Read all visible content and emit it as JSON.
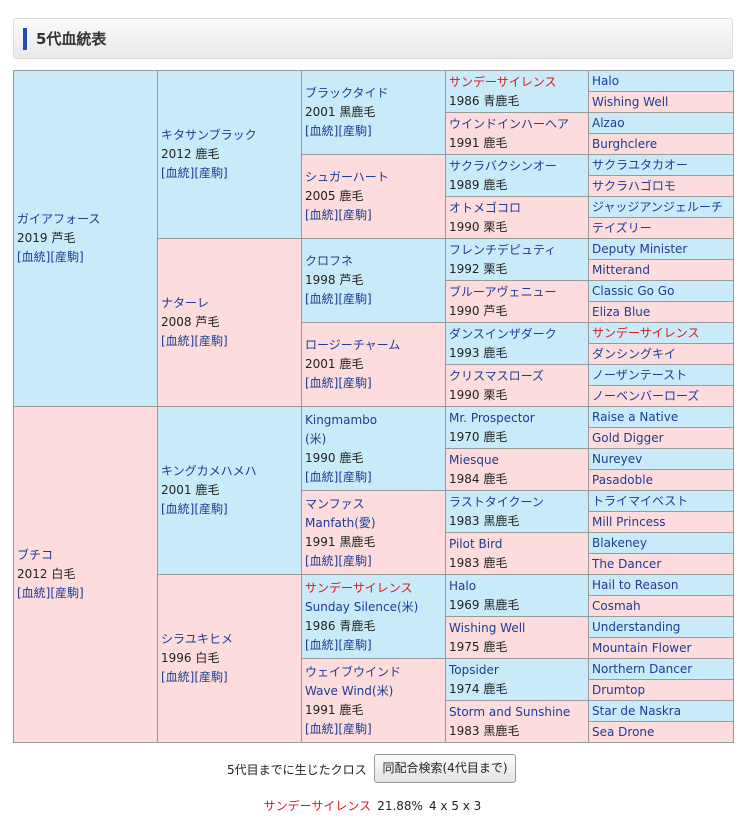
{
  "header": {
    "title": "5代血統表"
  },
  "link_labels": [
    "[血統]",
    "[産駒]"
  ],
  "generations": [
    [
      {
        "name": "ガイアフォース",
        "year": 2019,
        "color": "芦毛"
      },
      {
        "name": "ブチコ",
        "year": 2012,
        "color": "白毛"
      }
    ],
    [
      {
        "name": "キタサンブラック",
        "year": 2012,
        "color": "鹿毛"
      },
      {
        "name": "ナターレ",
        "year": 2008,
        "color": "芦毛"
      },
      {
        "name": "キングカメハメハ",
        "year": 2001,
        "color": "鹿毛"
      },
      {
        "name": "シラユキヒメ",
        "year": 1996,
        "color": "白毛"
      }
    ],
    [
      {
        "name": "ブラックタイド",
        "year": 2001,
        "color": "黒鹿毛"
      },
      {
        "name": "シュガーハート",
        "year": 2005,
        "color": "鹿毛"
      },
      {
        "name": "クロフネ",
        "year": 1998,
        "color": "芦毛"
      },
      {
        "name": "ロージーチャーム",
        "year": 2001,
        "color": "鹿毛"
      },
      {
        "name": "Kingmambo",
        "sub": "(米)",
        "year": 1990,
        "color": "鹿毛"
      },
      {
        "name": "マンファス",
        "sub": "Manfath(愛)",
        "year": 1991,
        "color": "黒鹿毛"
      },
      {
        "name": "サンデーサイレンス",
        "sub": "Sunday Silence(米)",
        "year": 1986,
        "color": "青鹿毛"
      },
      {
        "name": "ウェイブウインド",
        "sub": "Wave Wind(米)",
        "year": 1991,
        "color": "鹿毛"
      }
    ],
    [
      {
        "name": "サンデーサイレンス",
        "year": 1986,
        "color": "青鹿毛"
      },
      {
        "name": "ウインドインハーヘア",
        "year": 1991,
        "color": "鹿毛"
      },
      {
        "name": "サクラバクシンオー",
        "year": 1989,
        "color": "鹿毛"
      },
      {
        "name": "オトメゴコロ",
        "year": 1990,
        "color": "栗毛"
      },
      {
        "name": "フレンチデピュティ",
        "year": 1992,
        "color": "栗毛"
      },
      {
        "name": "ブルーアヴェニュー",
        "year": 1990,
        "color": "芦毛"
      },
      {
        "name": "ダンスインザダーク",
        "year": 1993,
        "color": "鹿毛"
      },
      {
        "name": "クリスマスローズ",
        "year": 1990,
        "color": "栗毛"
      },
      {
        "name": "Mr. Prospector",
        "year": 1970,
        "color": "鹿毛"
      },
      {
        "name": "Miesque",
        "year": 1984,
        "color": "鹿毛"
      },
      {
        "name": "ラストタイクーン",
        "year": 1983,
        "color": "黒鹿毛"
      },
      {
        "name": "Pilot Bird",
        "year": 1983,
        "color": "鹿毛"
      },
      {
        "name": "Halo",
        "year": 1969,
        "color": "黒鹿毛"
      },
      {
        "name": "Wishing Well",
        "year": 1975,
        "color": "鹿毛"
      },
      {
        "name": "Topsider",
        "year": 1974,
        "color": "鹿毛"
      },
      {
        "name": "Storm and Sunshine",
        "year": 1983,
        "color": "黒鹿毛"
      }
    ],
    [
      {
        "name": "Halo"
      },
      {
        "name": "Wishing Well"
      },
      {
        "name": "Alzao"
      },
      {
        "name": "Burghclere"
      },
      {
        "name": "サクラユタカオー"
      },
      {
        "name": "サクラハゴロモ"
      },
      {
        "name": "ジャッジアンジェルーチ"
      },
      {
        "name": "テイズリー"
      },
      {
        "name": "Deputy Minister"
      },
      {
        "name": "Mitterand"
      },
      {
        "name": "Classic Go Go"
      },
      {
        "name": "Eliza Blue"
      },
      {
        "name": "サンデーサイレンス"
      },
      {
        "name": "ダンシングキイ"
      },
      {
        "name": "ノーザンテースト"
      },
      {
        "name": "ノーベンバーローズ"
      },
      {
        "name": "Raise a Native"
      },
      {
        "name": "Gold Digger"
      },
      {
        "name": "Nureyev"
      },
      {
        "name": "Pasadoble"
      },
      {
        "name": "トライマイベスト"
      },
      {
        "name": "Mill Princess"
      },
      {
        "name": "Blakeney"
      },
      {
        "name": "The Dancer"
      },
      {
        "name": "Hail to Reason"
      },
      {
        "name": "Cosmah"
      },
      {
        "name": "Understanding"
      },
      {
        "name": "Mountain Flower"
      },
      {
        "name": "Northern Dancer"
      },
      {
        "name": "Drumtop"
      },
      {
        "name": "Star de Naskra"
      },
      {
        "name": "Sea Drone"
      }
    ]
  ],
  "cross_section": {
    "label": "5代目までに生じたクロス",
    "button": "同配合検索(4代目まで)"
  },
  "crosses": [
    {
      "name": "サンデーサイレンス",
      "percent": "21.88%",
      "pattern": "4 x 5 x 3"
    }
  ]
}
